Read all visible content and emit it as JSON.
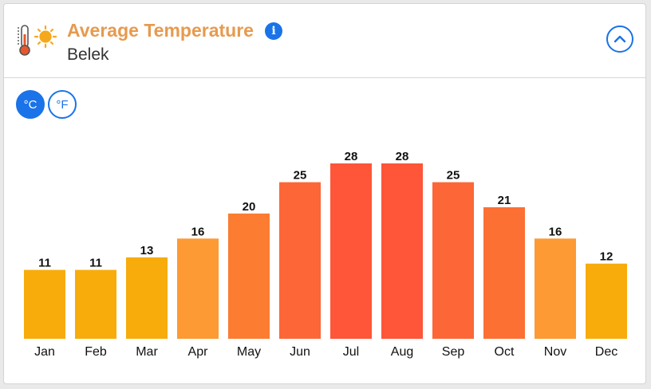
{
  "header": {
    "title": "Average Temperature",
    "subtitle": "Belek",
    "info_icon_glyph": "i",
    "icons": [
      "thermometer-icon",
      "sun-icon",
      "info-icon",
      "chevron-up-icon"
    ],
    "accent_color": "#1a73e8",
    "title_color": "#e69a4e"
  },
  "units": {
    "celsius_label": "°C",
    "fahrenheit_label": "°F",
    "selected": "°C"
  },
  "chart_data": {
    "type": "bar",
    "title": "",
    "xlabel": "",
    "ylabel": "",
    "categories": [
      "Jan",
      "Feb",
      "Mar",
      "Apr",
      "May",
      "Jun",
      "Jul",
      "Aug",
      "Sep",
      "Oct",
      "Nov",
      "Dec"
    ],
    "values": [
      11,
      11,
      13,
      16,
      20,
      25,
      28,
      28,
      25,
      21,
      16,
      12
    ],
    "ylim": [
      0,
      28
    ],
    "grid": false,
    "legend": "none",
    "data_labels": true,
    "colors": [
      "#f7ac0c",
      "#f7ac0c",
      "#f7ac0c",
      "#fd9a33",
      "#fc7c31",
      "#fd6637",
      "#ff5538",
      "#ff5538",
      "#fd6637",
      "#fc7034",
      "#fd9a33",
      "#f7ac0c"
    ]
  }
}
